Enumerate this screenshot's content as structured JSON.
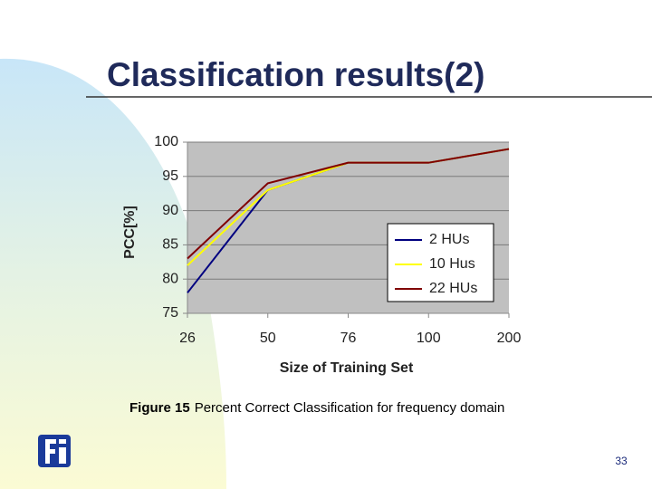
{
  "slide": {
    "title": "Classification results(2)",
    "caption": {
      "label": "Figure 15",
      "text": "Percent Correct Classification for frequency domain"
    },
    "page_number": "33"
  },
  "chart_data": {
    "type": "line",
    "x_label": "Size of Training Set",
    "y_label": "PCC[%]",
    "categories": [
      "26",
      "50",
      "76",
      "100",
      "200"
    ],
    "series": [
      {
        "name": "2 HUs",
        "color": "#000080",
        "values": [
          78,
          93,
          97,
          97,
          99
        ]
      },
      {
        "name": "10 Hus",
        "color": "#ffff00",
        "values": [
          82,
          93,
          97,
          97,
          99
        ]
      },
      {
        "name": "22 HUs",
        "color": "#800000",
        "values": [
          83,
          94,
          97,
          97,
          99
        ]
      }
    ],
    "ylim": [
      75,
      100
    ],
    "yticks": [
      75,
      80,
      85,
      90,
      95,
      100
    ],
    "grid": true,
    "legend": "lower-right"
  }
}
